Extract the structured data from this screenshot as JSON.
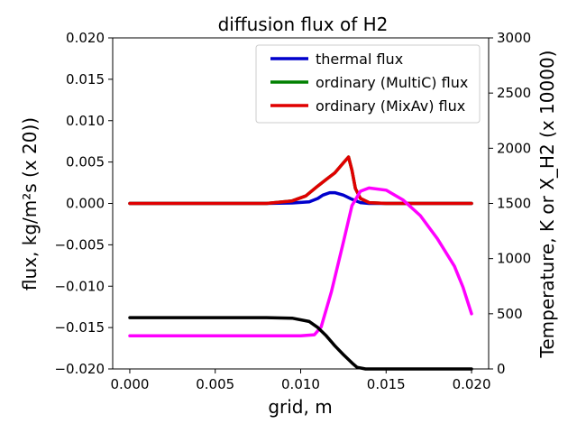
{
  "chart_data": {
    "type": "line",
    "title": "diffusion flux of H2",
    "xlabel": "grid, m",
    "ylabel": "flux, kg/m²s (x 20))",
    "ylabel_right": "Temperature, K or X_H2 (x 10000)",
    "xlim": [
      -0.001,
      0.021
    ],
    "ylim": [
      -0.02,
      0.02
    ],
    "ylim_right": [
      0,
      3000
    ],
    "x_ticks": [
      "0.000",
      "0.005",
      "0.010",
      "0.015",
      "0.020"
    ],
    "y_ticks": [
      "−0.020",
      "−0.015",
      "−0.010",
      "−0.005",
      "0.000",
      "0.005",
      "0.010",
      "0.015",
      "0.020"
    ],
    "y_ticks_right": [
      "0",
      "500",
      "1000",
      "1500",
      "2000",
      "2500",
      "3000"
    ],
    "legend_position": "top-right",
    "grid": false,
    "series": [
      {
        "name": "thermal flux",
        "axis": "left",
        "color": "#0000cc",
        "x": [
          0.0,
          0.008,
          0.0095,
          0.0105,
          0.011,
          0.0113,
          0.0117,
          0.012,
          0.0125,
          0.013,
          0.0135,
          0.014,
          0.015,
          0.02
        ],
        "y": [
          0.0,
          0.0,
          5e-05,
          0.0002,
          0.0006,
          0.001,
          0.0013,
          0.0013,
          0.001,
          0.0005,
          0.0001,
          0.0,
          0.0,
          0.0
        ]
      },
      {
        "name": "ordinary (MultiC) flux",
        "axis": "left",
        "color": "#008000",
        "x": [
          0.0,
          0.008,
          0.0095,
          0.0103,
          0.011,
          0.0115,
          0.012,
          0.0125,
          0.0128,
          0.013,
          0.0132,
          0.0135,
          0.014,
          0.015,
          0.02
        ],
        "y": [
          0.0,
          0.0,
          0.0003,
          0.0009,
          0.0021,
          0.0029,
          0.0037,
          0.0049,
          0.0056,
          0.004,
          0.0018,
          0.0006,
          0.0001,
          0.0,
          0.0
        ]
      },
      {
        "name": "ordinary (MixAv) flux",
        "axis": "left",
        "color": "#e00000",
        "x": [
          0.0,
          0.008,
          0.0095,
          0.0103,
          0.011,
          0.0115,
          0.012,
          0.0125,
          0.0128,
          0.013,
          0.0132,
          0.0135,
          0.014,
          0.015,
          0.02
        ],
        "y": [
          0.0,
          0.0,
          0.0003,
          0.0009,
          0.0021,
          0.0029,
          0.0037,
          0.0049,
          0.0056,
          0.004,
          0.0018,
          0.0006,
          0.0001,
          0.0,
          0.0
        ]
      },
      {
        "axis": "right",
        "color": "#ff00ff",
        "x": [
          0.0,
          0.005,
          0.01,
          0.0108,
          0.0112,
          0.0118,
          0.0125,
          0.013,
          0.0135,
          0.014,
          0.015,
          0.016,
          0.017,
          0.018,
          0.019,
          0.0195,
          0.02
        ],
        "y": [
          300,
          300,
          300,
          310,
          380,
          700,
          1150,
          1480,
          1610,
          1640,
          1620,
          1530,
          1390,
          1180,
          930,
          740,
          500
        ]
      },
      {
        "axis": "right",
        "color": "#000000",
        "x": [
          0.0,
          0.005,
          0.008,
          0.0095,
          0.0105,
          0.011,
          0.0115,
          0.012,
          0.0125,
          0.013,
          0.0133,
          0.0138,
          0.015,
          0.02
        ],
        "y": [
          465,
          465,
          465,
          460,
          430,
          375,
          300,
          210,
          130,
          55,
          15,
          0,
          0,
          0
        ]
      }
    ]
  }
}
